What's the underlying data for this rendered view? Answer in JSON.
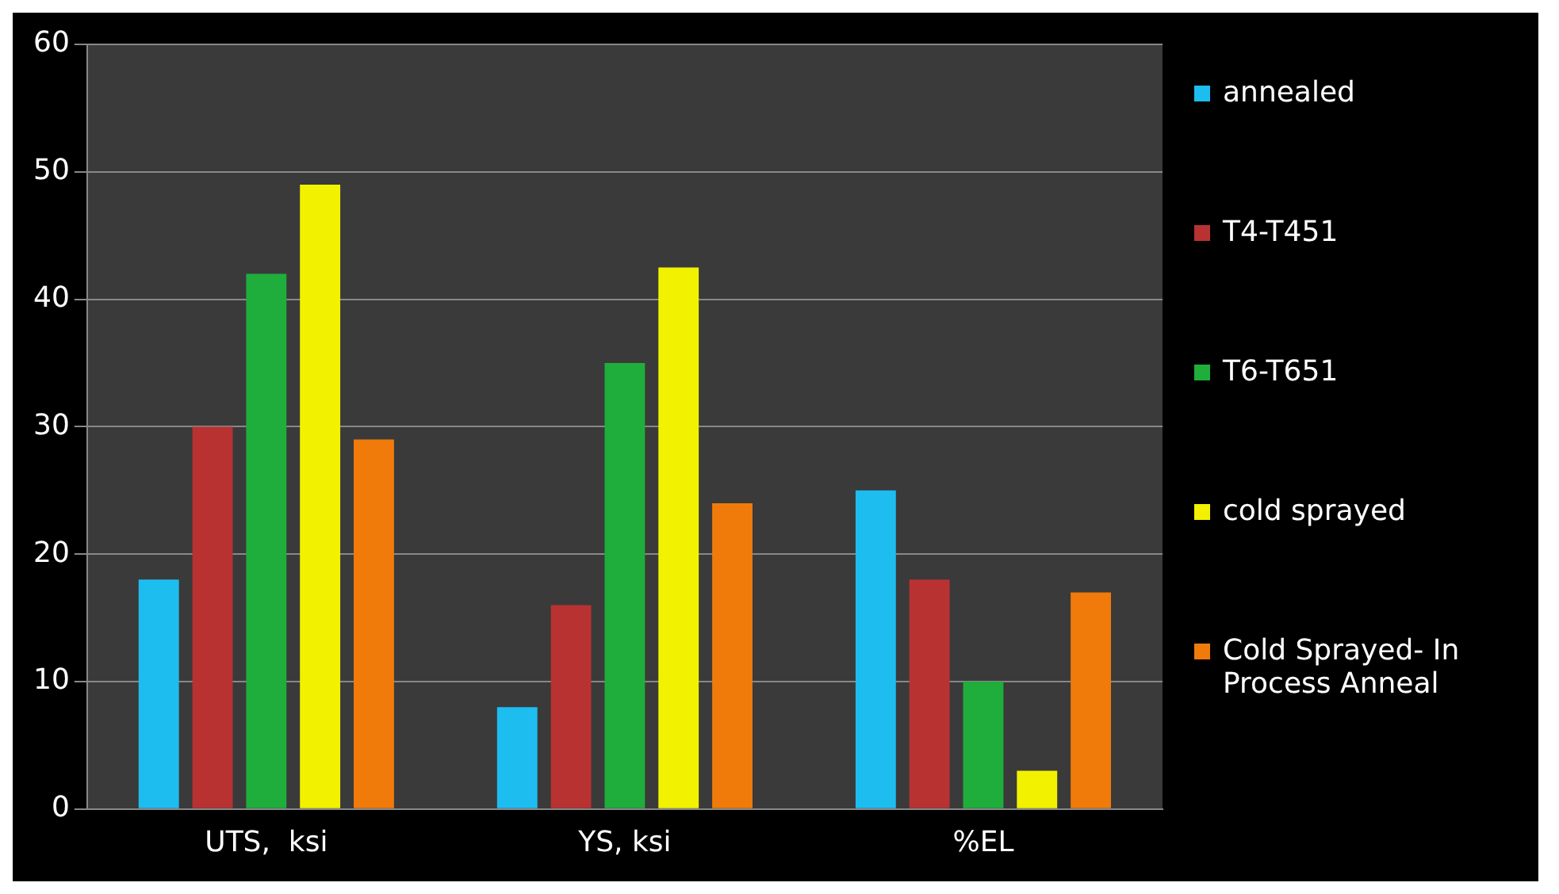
{
  "chart_data": {
    "type": "bar",
    "categories": [
      "UTS,  ksi",
      "YS, ksi",
      "%EL"
    ],
    "series": [
      {
        "name": "annealed",
        "color": "#1ebdf0",
        "values": [
          18,
          8,
          25
        ]
      },
      {
        "name": "T4-T451",
        "color": "#b83232",
        "values": [
          30,
          16,
          18
        ]
      },
      {
        "name": "T6-T651",
        "color": "#1fae3c",
        "values": [
          42,
          35,
          10
        ]
      },
      {
        "name": "cold sprayed",
        "color": "#f2f200",
        "values": [
          49,
          42.5,
          3
        ]
      },
      {
        "name": "Cold Sprayed- In Process Anneal",
        "color": "#f07b0a",
        "values": [
          29,
          24,
          17
        ]
      }
    ],
    "ylim": [
      0,
      60
    ],
    "yticks": [
      0,
      10,
      20,
      30,
      40,
      50,
      60
    ],
    "grid": "y",
    "legend": "right"
  }
}
